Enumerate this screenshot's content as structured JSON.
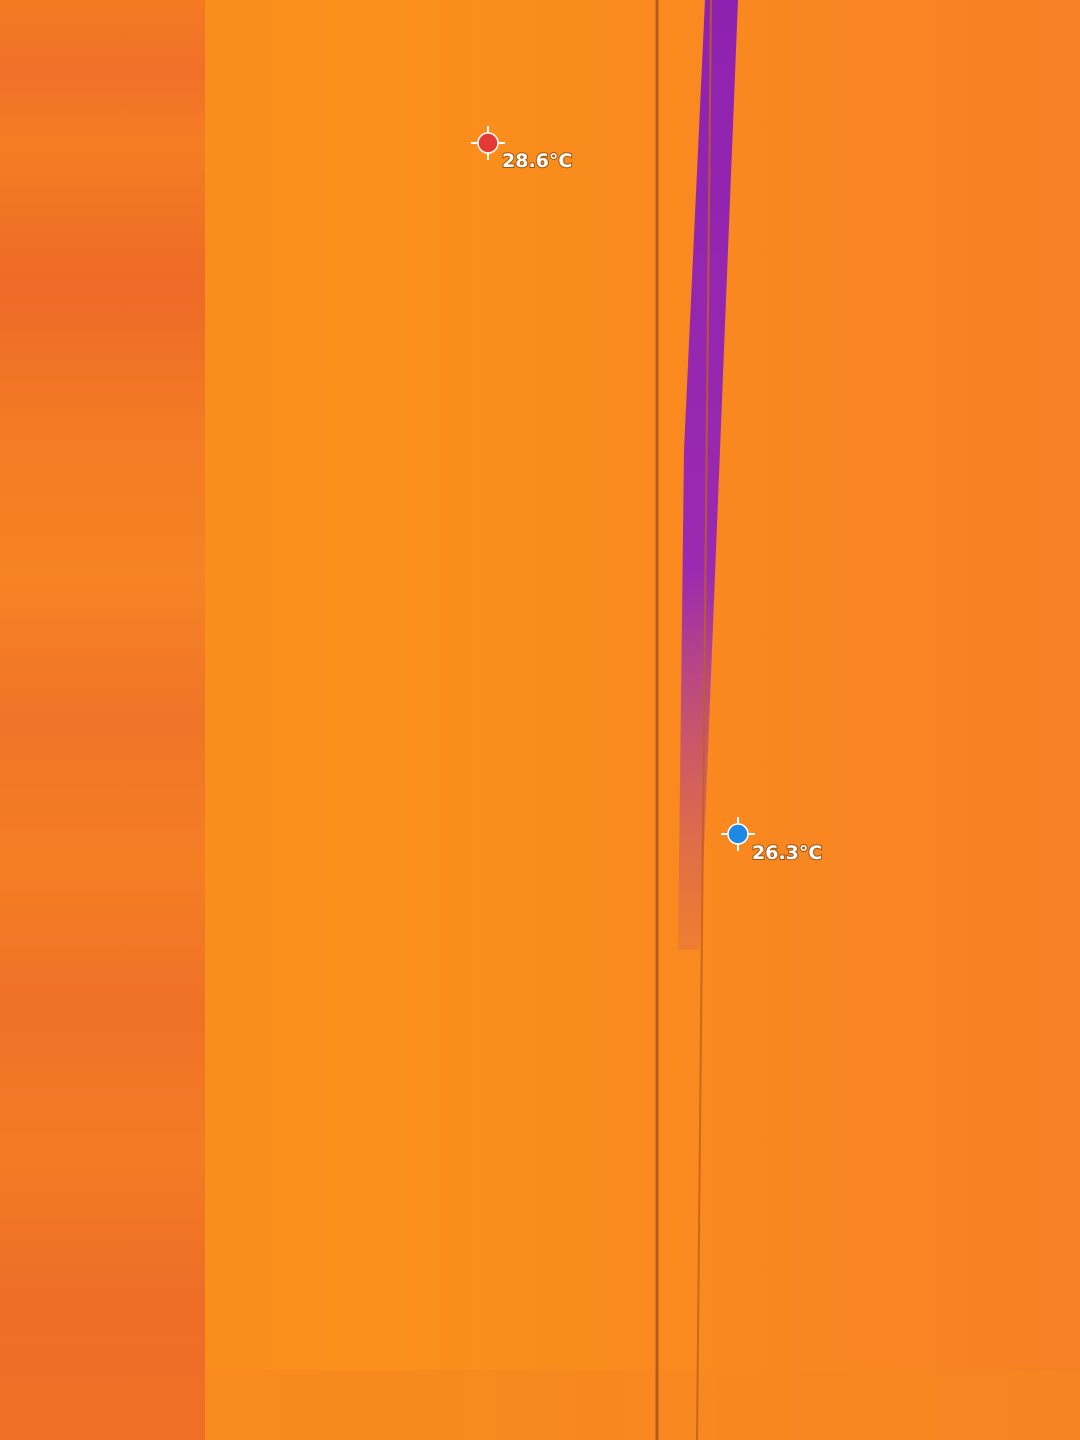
{
  "markers": [
    {
      "label": "28.6°C"
    },
    {
      "label": "26.3°C"
    }
  ]
}
